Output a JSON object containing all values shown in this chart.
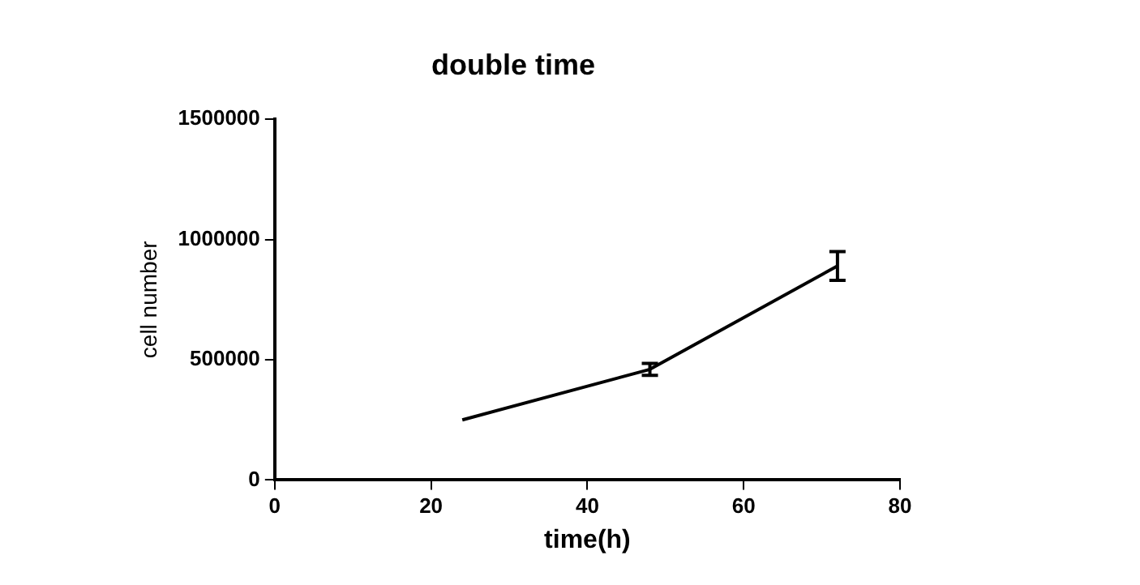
{
  "chart_data": {
    "type": "line",
    "title": "double time",
    "xlabel": "time(h)",
    "ylabel": "cell number",
    "x": [
      24,
      48,
      72
    ],
    "series": [
      {
        "color": "#000000",
        "values": [
          250000,
          460000,
          890000
        ],
        "errors": [
          null,
          25000,
          60000
        ]
      }
    ],
    "xlim": [
      0,
      80
    ],
    "xticks": [
      0,
      20,
      40,
      60,
      80
    ],
    "ylim": [
      0,
      1500000
    ],
    "yticks": [
      0,
      500000,
      1000000,
      1500000
    ],
    "marker": "none",
    "line_style": "solid",
    "legend": false,
    "grid": false
  }
}
